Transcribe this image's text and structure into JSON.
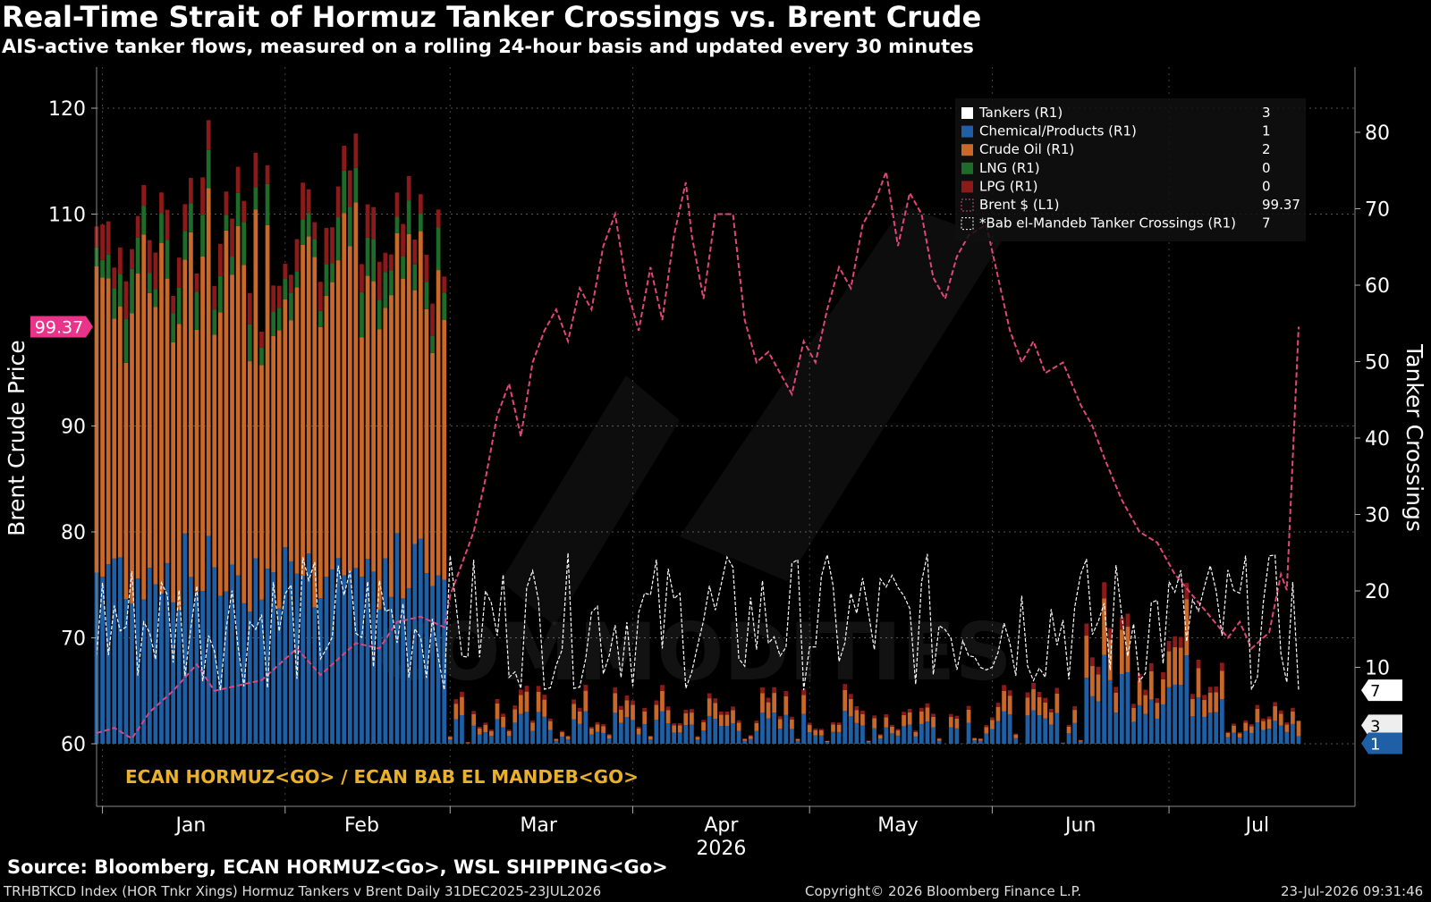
{
  "header": {
    "title": "Real-Time Strait of Hormuz Tanker Crossings vs. Brent Crude",
    "subtitle": "AIS-active tanker flows, measured on a rolling 24-hour basis and updated every 30 minutes"
  },
  "footer": {
    "source": "Source: Bloomberg, ECAN HORMUZ<Go>, WSL SHIPPING<Go>",
    "index_line": "TRHBTKCD Index (HOR Tnkr Xings) Hormuz Tankers v Brent Daily 31DEC2025-23JUL2026",
    "copyright": "Copyright© 2026 Bloomberg Finance L.P.",
    "timestamp": "23-Jul-2026 09:31:46"
  },
  "annotation": "ECAN HORMUZ<GO> / ECAN BAB EL MANDEB<GO>",
  "watermark": "COMMODITIES",
  "colors": {
    "tankers": "#ffffff",
    "chemical": "#1f5fa6",
    "crude": "#c8692a",
    "lng": "#1e6b2a",
    "lpg": "#8b1a1a",
    "brent": "#e0457b",
    "bab": "#ffffff",
    "annotation": "#e9b12a",
    "brent_badge": "#e8358a"
  },
  "chart_data": {
    "type": "bar",
    "stacked": true,
    "x_axis": {
      "months": [
        "Jan",
        "Feb",
        "Mar",
        "Apr",
        "May",
        "Jun",
        "Jul"
      ],
      "year": "2026",
      "range": [
        "2025-12-31",
        "2026-07-23"
      ]
    },
    "y_left": {
      "label": "Brent Crude Price",
      "ticks": [
        60,
        70,
        80,
        90,
        110,
        120
      ],
      "range": [
        54,
        127
      ]
    },
    "y_right": {
      "label": "Tanker Crossings",
      "ticks": [
        10,
        20,
        30,
        40,
        50,
        60,
        70,
        80
      ],
      "range": [
        -5,
        83
      ]
    },
    "legend": {
      "position": "top-right",
      "entries": [
        {
          "label": "Tankers (R1)",
          "value": "3",
          "color": "#ffffff"
        },
        {
          "label": "Chemical/Products (R1)",
          "value": "1",
          "color": "#1f5fa6"
        },
        {
          "label": "Crude Oil  (R1)",
          "value": "2",
          "color": "#c8692a"
        },
        {
          "label": "LNG  (R1)",
          "value": "0",
          "color": "#1e6b2a"
        },
        {
          "label": "LPG  (R1)",
          "value": "0",
          "color": "#8b1a1a"
        },
        {
          "label": "Brent $ (L1)",
          "value": "99.37",
          "color": "#e0457b"
        },
        {
          "label": "*Bab el-Mandeb Tanker Crossings (R1)",
          "value": "7",
          "color": "#ffffff"
        }
      ]
    },
    "last_value_badges": {
      "brent": "99.37",
      "bab": "7",
      "tankers": "3",
      "chemical": "1"
    },
    "brent": {
      "name": "Brent $ (L1)",
      "points": [
        [
          "2025-12-31",
          61
        ],
        [
          "2026-01-03",
          61.5
        ],
        [
          "2026-01-06",
          60.5
        ],
        [
          "2026-01-09",
          63
        ],
        [
          "2026-01-13",
          65
        ],
        [
          "2026-01-17",
          67.5
        ],
        [
          "2026-01-20",
          65
        ],
        [
          "2026-01-24",
          65.5
        ],
        [
          "2026-01-28",
          66
        ],
        [
          "2026-01-31",
          67.5
        ],
        [
          "2026-02-03",
          69
        ],
        [
          "2026-02-07",
          66.5
        ],
        [
          "2026-02-10",
          68
        ],
        [
          "2026-02-13",
          69.5
        ],
        [
          "2026-02-17",
          69
        ],
        [
          "2026-02-20",
          71.5
        ],
        [
          "2026-02-24",
          72
        ],
        [
          "2026-02-28",
          71
        ],
        [
          "2026-03-01",
          74
        ],
        [
          "2026-03-03",
          77
        ],
        [
          "2026-03-05",
          80
        ],
        [
          "2026-03-07",
          85
        ],
        [
          "2026-03-09",
          91
        ],
        [
          "2026-03-11",
          94
        ],
        [
          "2026-03-13",
          89
        ],
        [
          "2026-03-15",
          96
        ],
        [
          "2026-03-17",
          99
        ],
        [
          "2026-03-19",
          101
        ],
        [
          "2026-03-21",
          98
        ],
        [
          "2026-03-23",
          103
        ],
        [
          "2026-03-25",
          101
        ],
        [
          "2026-03-27",
          107
        ],
        [
          "2026-03-29",
          110
        ],
        [
          "2026-03-31",
          103
        ],
        [
          "2026-04-02",
          99
        ],
        [
          "2026-04-04",
          105
        ],
        [
          "2026-04-06",
          100
        ],
        [
          "2026-04-08",
          108
        ],
        [
          "2026-04-10",
          113
        ],
        [
          "2026-04-11",
          108
        ],
        [
          "2026-04-13",
          102
        ],
        [
          "2026-04-15",
          110
        ],
        [
          "2026-04-18",
          110
        ],
        [
          "2026-04-20",
          100
        ],
        [
          "2026-04-22",
          96
        ],
        [
          "2026-04-24",
          97
        ],
        [
          "2026-04-26",
          95
        ],
        [
          "2026-04-28",
          93
        ],
        [
          "2026-04-30",
          98
        ],
        [
          "2026-05-02",
          96
        ],
        [
          "2026-05-04",
          101
        ],
        [
          "2026-05-06",
          105
        ],
        [
          "2026-05-08",
          103
        ],
        [
          "2026-05-10",
          109
        ],
        [
          "2026-05-12",
          111
        ],
        [
          "2026-05-14",
          114
        ],
        [
          "2026-05-16",
          107
        ],
        [
          "2026-05-18",
          112
        ],
        [
          "2026-05-20",
          110
        ],
        [
          "2026-05-22",
          104
        ],
        [
          "2026-05-24",
          102
        ],
        [
          "2026-05-26",
          106
        ],
        [
          "2026-05-28",
          108
        ],
        [
          "2026-05-31",
          109
        ],
        [
          "2026-06-02",
          104
        ],
        [
          "2026-06-04",
          99
        ],
        [
          "2026-06-06",
          96
        ],
        [
          "2026-06-08",
          98
        ],
        [
          "2026-06-10",
          95
        ],
        [
          "2026-06-13",
          96
        ],
        [
          "2026-06-16",
          92
        ],
        [
          "2026-06-18",
          90
        ],
        [
          "2026-06-20",
          87
        ],
        [
          "2026-06-23",
          83
        ],
        [
          "2026-06-26",
          80
        ],
        [
          "2026-06-29",
          79
        ],
        [
          "2026-07-02",
          76
        ],
        [
          "2026-07-05",
          74
        ],
        [
          "2026-07-08",
          72
        ],
        [
          "2026-07-11",
          70
        ],
        [
          "2026-07-13",
          71.5
        ],
        [
          "2026-07-15",
          69
        ],
        [
          "2026-07-18",
          70.5
        ],
        [
          "2026-07-20",
          76
        ],
        [
          "2026-07-21",
          74.5
        ],
        [
          "2026-07-23",
          99.37
        ]
      ]
    },
    "bab_el_mandeb": {
      "name": "*Bab el-Mandeb Tanker Crossings (R1)",
      "description_range": [
        7,
        25
      ],
      "last": 7
    },
    "hormuz_stacks": {
      "series": [
        "Chemical/Products (R1)",
        "Crude Oil  (R1)",
        "LNG  (R1)",
        "LPG  (R1)",
        "Tankers (R1)"
      ],
      "periods": [
        {
          "from": "2025-12-31",
          "to": "2026-02-28",
          "total_range": [
            52,
            82
          ],
          "chemical_range": [
            17,
            28
          ],
          "crude_range": [
            30,
            48
          ],
          "lng_range": [
            2,
            6
          ],
          "lpg_range": [
            2,
            5
          ]
        },
        {
          "from": "2026-03-01",
          "to": "2026-06-16",
          "total_range": [
            0,
            8
          ]
        },
        {
          "from": "2026-06-17",
          "to": "2026-07-10",
          "total_range": [
            5,
            22
          ]
        },
        {
          "from": "2026-07-11",
          "to": "2026-07-23",
          "total_range": [
            1,
            6
          ]
        }
      ],
      "last": {
        "tankers": 3,
        "chemical": 1,
        "crude": 2,
        "lng": 0,
        "lpg": 0
      }
    }
  }
}
